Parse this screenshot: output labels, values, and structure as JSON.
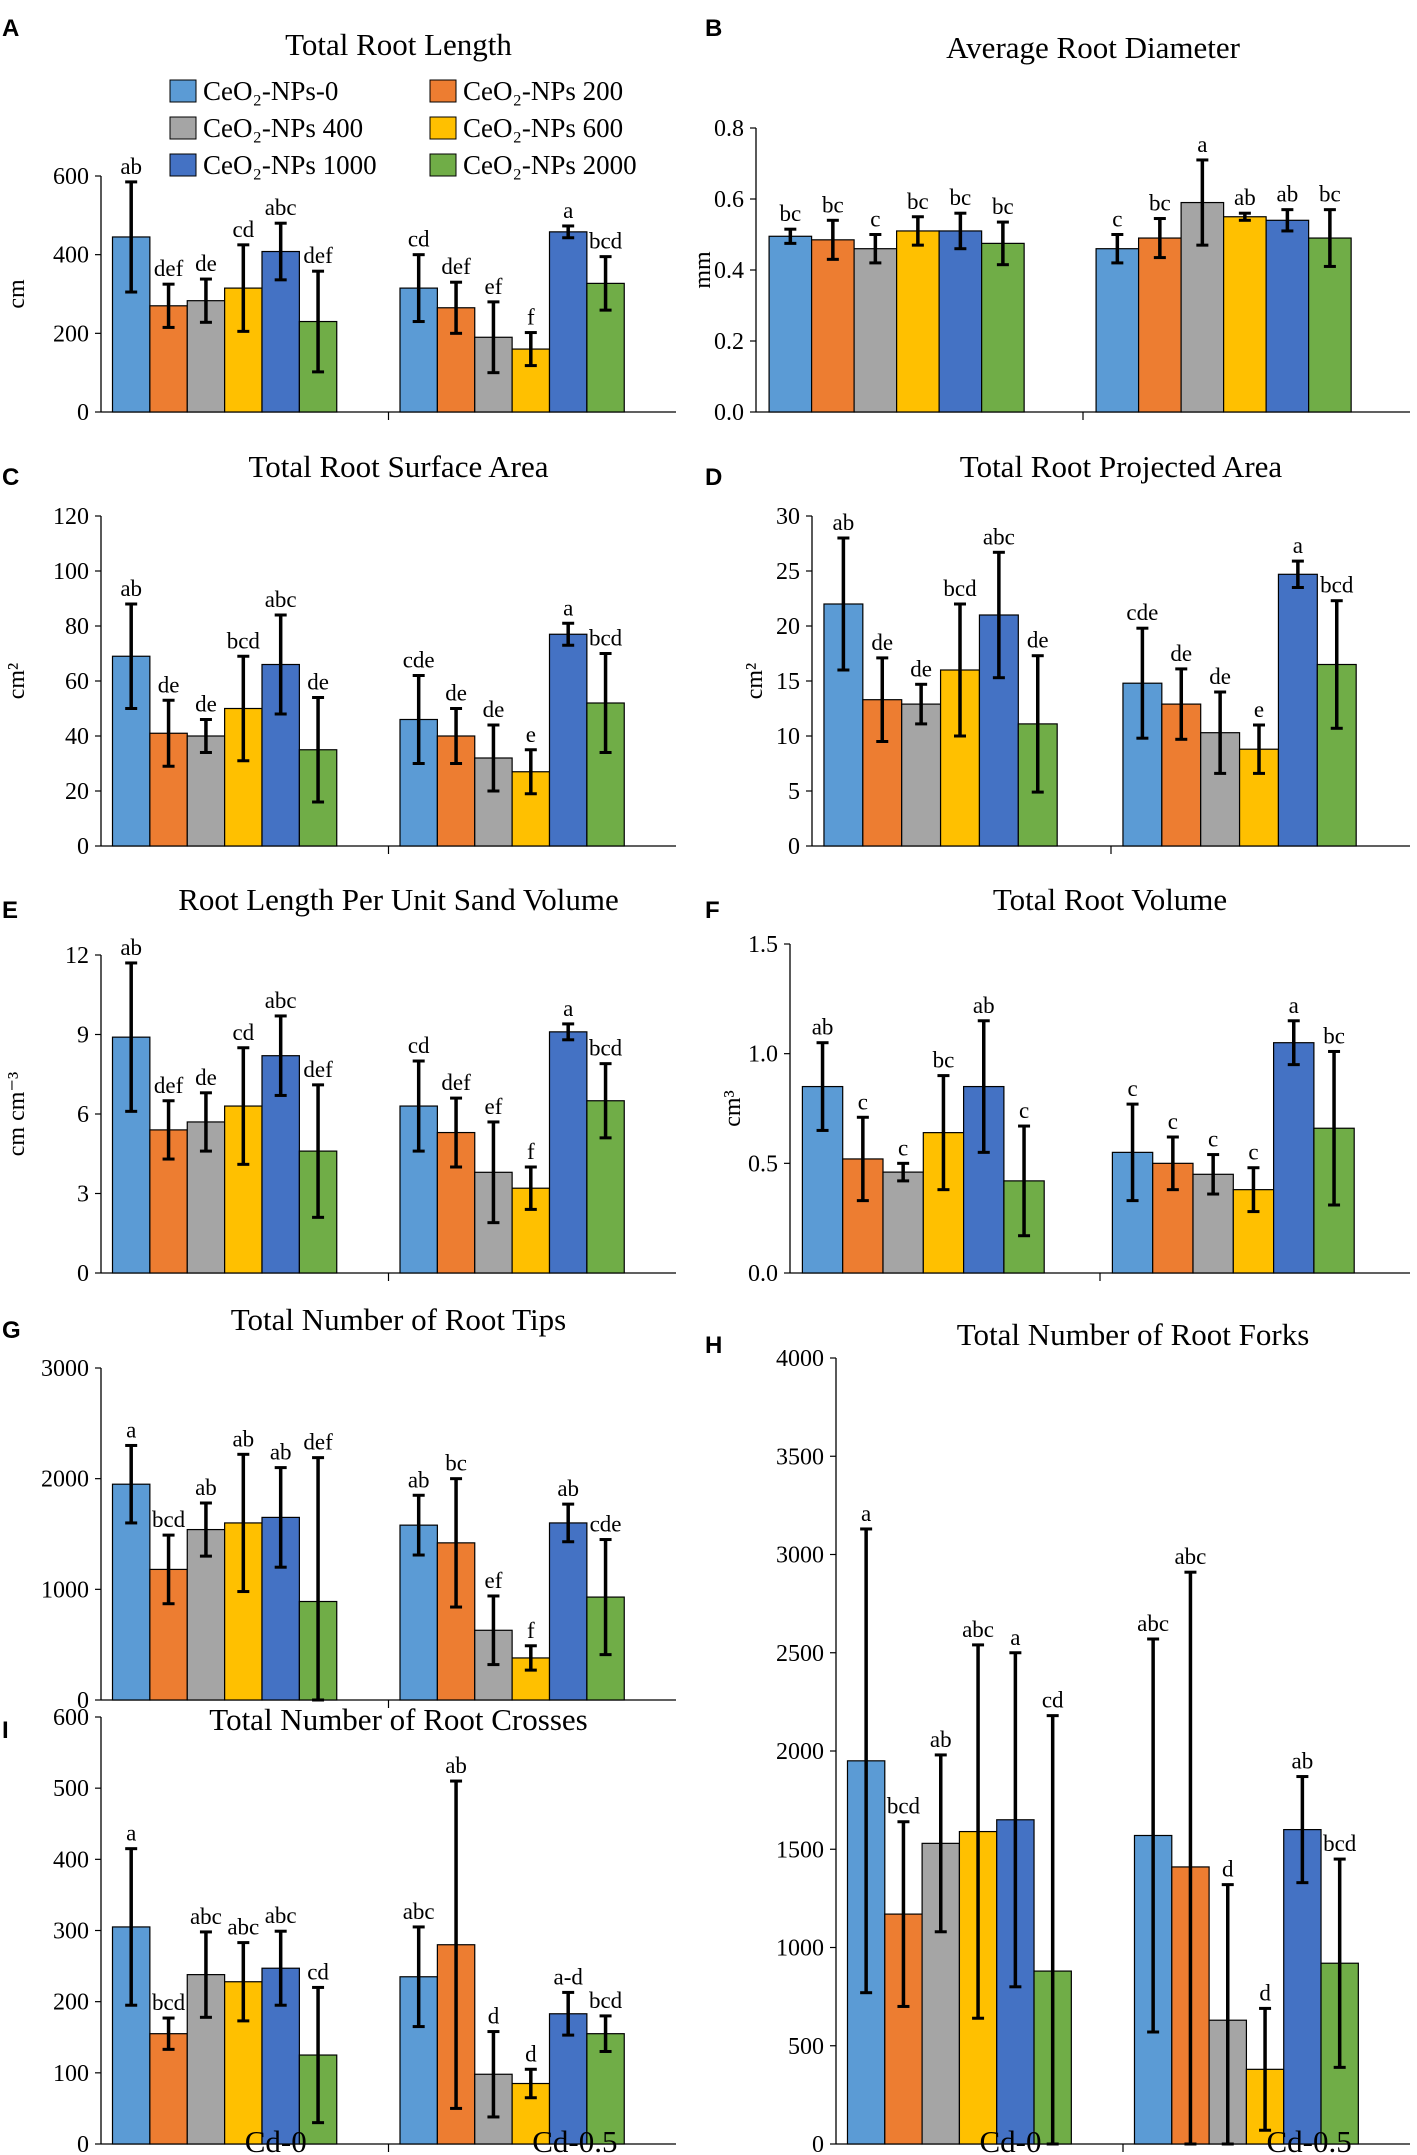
{
  "legend": {
    "items": [
      {
        "label": "CeO₂-NPs-0",
        "color": "#5b9bd5"
      },
      {
        "label": "CeO₂-NPs 200",
        "color": "#ed7d31"
      },
      {
        "label": "CeO₂-NPs 400",
        "color": "#a5a5a5"
      },
      {
        "label": "CeO₂-NPs 600",
        "color": "#ffc000"
      },
      {
        "label": "CeO₂-NPs 1000",
        "color": "#4472c4"
      },
      {
        "label": "CeO₂-NPs 2000",
        "color": "#70ad47"
      }
    ]
  },
  "x_groups": [
    "Cd-0",
    "Cd-0.5"
  ],
  "chart_data": [
    {
      "panel": "A",
      "type": "bar",
      "title": "Total Root Length",
      "ylabel": "cm",
      "ylim": [
        0,
        600
      ],
      "yticks": [
        0,
        200,
        400,
        600
      ],
      "categories": [
        "Cd-0",
        "Cd-0.5"
      ],
      "series": [
        {
          "name": "CeO₂-NPs-0",
          "values": [
            445,
            315
          ],
          "errors": [
            140,
            85
          ],
          "letters": [
            "ab",
            "cd"
          ]
        },
        {
          "name": "CeO₂-NPs 200",
          "values": [
            270,
            265
          ],
          "errors": [
            55,
            65
          ],
          "letters": [
            "def",
            "def"
          ]
        },
        {
          "name": "CeO₂-NPs 400",
          "values": [
            283,
            190
          ],
          "errors": [
            55,
            90
          ],
          "letters": [
            "de",
            "ef"
          ]
        },
        {
          "name": "CeO₂-NPs 600",
          "values": [
            315,
            160
          ],
          "errors": [
            110,
            42
          ],
          "letters": [
            "cd",
            "f"
          ]
        },
        {
          "name": "CeO₂-NPs 1000",
          "values": [
            408,
            458
          ],
          "errors": [
            72,
            15
          ],
          "letters": [
            "abc",
            "a"
          ]
        },
        {
          "name": "CeO₂-NPs 2000",
          "values": [
            230,
            327
          ],
          "errors": [
            128,
            68
          ],
          "letters": [
            "def",
            "bcd"
          ]
        }
      ]
    },
    {
      "panel": "B",
      "type": "bar",
      "title": "Average Root Diameter",
      "ylabel": "mm",
      "ylim": [
        0,
        0.8
      ],
      "yticks": [
        0.0,
        0.2,
        0.4,
        0.6,
        0.8
      ],
      "tick_decimals": 1,
      "categories": [
        "Cd-0",
        "Cd-0.5"
      ],
      "series": [
        {
          "name": "CeO₂-NPs-0",
          "values": [
            0.495,
            0.46
          ],
          "errors": [
            0.02,
            0.04
          ],
          "letters": [
            "bc",
            "c"
          ]
        },
        {
          "name": "CeO₂-NPs 200",
          "values": [
            0.485,
            0.49
          ],
          "errors": [
            0.055,
            0.055
          ],
          "letters": [
            "bc",
            "bc"
          ]
        },
        {
          "name": "CeO₂-NPs 400",
          "values": [
            0.46,
            0.59
          ],
          "errors": [
            0.04,
            0.12
          ],
          "letters": [
            "c",
            "a"
          ]
        },
        {
          "name": "CeO₂-NPs 600",
          "values": [
            0.51,
            0.55
          ],
          "errors": [
            0.04,
            0.01
          ],
          "letters": [
            "bc",
            "ab"
          ]
        },
        {
          "name": "CeO₂-NPs 1000",
          "values": [
            0.51,
            0.54
          ],
          "errors": [
            0.05,
            0.03
          ],
          "letters": [
            "bc",
            "ab"
          ]
        },
        {
          "name": "CeO₂-NPs 2000",
          "values": [
            0.475,
            0.49
          ],
          "errors": [
            0.06,
            0.08
          ],
          "letters": [
            "bc",
            "bc"
          ]
        }
      ]
    },
    {
      "panel": "C",
      "type": "bar",
      "title": "Total Root Surface Area",
      "ylabel": "cm²",
      "ylim": [
        0,
        120
      ],
      "yticks": [
        0,
        20,
        40,
        60,
        80,
        100,
        120
      ],
      "categories": [
        "Cd-0",
        "Cd-0.5"
      ],
      "series": [
        {
          "name": "CeO₂-NPs-0",
          "values": [
            69,
            46
          ],
          "errors": [
            19,
            16
          ],
          "letters": [
            "ab",
            "cde"
          ]
        },
        {
          "name": "CeO₂-NPs 200",
          "values": [
            41,
            40
          ],
          "errors": [
            12,
            10
          ],
          "letters": [
            "de",
            "de"
          ]
        },
        {
          "name": "CeO₂-NPs 400",
          "values": [
            40,
            32
          ],
          "errors": [
            6,
            12
          ],
          "letters": [
            "de",
            "de"
          ]
        },
        {
          "name": "CeO₂-NPs 600",
          "values": [
            50,
            27
          ],
          "errors": [
            19,
            8
          ],
          "letters": [
            "bcd",
            "e"
          ]
        },
        {
          "name": "CeO₂-NPs 1000",
          "values": [
            66,
            77
          ],
          "errors": [
            18,
            4
          ],
          "letters": [
            "abc",
            "a"
          ]
        },
        {
          "name": "CeO₂-NPs 2000",
          "values": [
            35,
            52
          ],
          "errors": [
            19,
            18
          ],
          "letters": [
            "de",
            "bcd"
          ]
        }
      ]
    },
    {
      "panel": "D",
      "type": "bar",
      "title": "Total Root Projected Area",
      "ylabel": "cm²",
      "ylim": [
        0,
        30
      ],
      "yticks": [
        0,
        5,
        10,
        15,
        20,
        25,
        30
      ],
      "categories": [
        "Cd-0",
        "Cd-0.5"
      ],
      "series": [
        {
          "name": "CeO₂-NPs-0",
          "values": [
            22,
            14.8
          ],
          "errors": [
            6,
            5
          ],
          "letters": [
            "ab",
            "cde"
          ]
        },
        {
          "name": "CeO₂-NPs 200",
          "values": [
            13.3,
            12.9
          ],
          "errors": [
            3.8,
            3.2
          ],
          "letters": [
            "de",
            "de"
          ]
        },
        {
          "name": "CeO₂-NPs 400",
          "values": [
            12.9,
            10.3
          ],
          "errors": [
            1.8,
            3.7
          ],
          "letters": [
            "de",
            "de"
          ]
        },
        {
          "name": "CeO₂-NPs 600",
          "values": [
            16,
            8.8
          ],
          "errors": [
            6,
            2.2
          ],
          "letters": [
            "bcd",
            "e"
          ]
        },
        {
          "name": "CeO₂-NPs 1000",
          "values": [
            21,
            24.7
          ],
          "errors": [
            5.7,
            1.2
          ],
          "letters": [
            "abc",
            "a"
          ]
        },
        {
          "name": "CeO₂-NPs 2000",
          "values": [
            11.1,
            16.5
          ],
          "errors": [
            6.2,
            5.8
          ],
          "letters": [
            "de",
            "bcd"
          ]
        }
      ]
    },
    {
      "panel": "E",
      "type": "bar",
      "title": "Root Length Per Unit Sand Volume",
      "ylabel": "cm cm⁻³",
      "ylim": [
        0,
        12
      ],
      "yticks": [
        0,
        3,
        6,
        9,
        12
      ],
      "categories": [
        "Cd-0",
        "Cd-0.5"
      ],
      "series": [
        {
          "name": "CeO₂-NPs-0",
          "values": [
            8.9,
            6.3
          ],
          "errors": [
            2.8,
            1.7
          ],
          "letters": [
            "ab",
            "cd"
          ]
        },
        {
          "name": "CeO₂-NPs 200",
          "values": [
            5.4,
            5.3
          ],
          "errors": [
            1.1,
            1.3
          ],
          "letters": [
            "def",
            "def"
          ]
        },
        {
          "name": "CeO₂-NPs 400",
          "values": [
            5.7,
            3.8
          ],
          "errors": [
            1.1,
            1.9
          ],
          "letters": [
            "de",
            "ef"
          ]
        },
        {
          "name": "CeO₂-NPs 600",
          "values": [
            6.3,
            3.2
          ],
          "errors": [
            2.2,
            0.8
          ],
          "letters": [
            "cd",
            "f"
          ]
        },
        {
          "name": "CeO₂-NPs 1000",
          "values": [
            8.2,
            9.1
          ],
          "errors": [
            1.5,
            0.3
          ],
          "letters": [
            "abc",
            "a"
          ]
        },
        {
          "name": "CeO₂-NPs 2000",
          "values": [
            4.6,
            6.5
          ],
          "errors": [
            2.5,
            1.4
          ],
          "letters": [
            "def",
            "bcd"
          ]
        }
      ]
    },
    {
      "panel": "F",
      "type": "bar",
      "title": "Total Root Volume",
      "ylabel": "cm³",
      "ylim": [
        0,
        1.5
      ],
      "yticks": [
        0.0,
        0.5,
        1.0,
        1.5
      ],
      "tick_decimals": 1,
      "categories": [
        "Cd-0",
        "Cd-0.5"
      ],
      "series": [
        {
          "name": "CeO₂-NPs-0",
          "values": [
            0.85,
            0.55
          ],
          "errors": [
            0.2,
            0.22
          ],
          "letters": [
            "ab",
            "c"
          ]
        },
        {
          "name": "CeO₂-NPs 200",
          "values": [
            0.52,
            0.5
          ],
          "errors": [
            0.19,
            0.12
          ],
          "letters": [
            "c",
            "c"
          ]
        },
        {
          "name": "CeO₂-NPs 400",
          "values": [
            0.46,
            0.45
          ],
          "errors": [
            0.04,
            0.09
          ],
          "letters": [
            "c",
            "c"
          ]
        },
        {
          "name": "CeO₂-NPs 600",
          "values": [
            0.64,
            0.38
          ],
          "errors": [
            0.26,
            0.1
          ],
          "letters": [
            "bc",
            "c"
          ]
        },
        {
          "name": "CeO₂-NPs 1000",
          "values": [
            0.85,
            1.05
          ],
          "errors": [
            0.3,
            0.1
          ],
          "letters": [
            "ab",
            "a"
          ]
        },
        {
          "name": "CeO₂-NPs 2000",
          "values": [
            0.42,
            0.66
          ],
          "errors": [
            0.25,
            0.35
          ],
          "letters": [
            "c",
            "bc"
          ]
        }
      ]
    },
    {
      "panel": "G",
      "type": "bar",
      "title": "Total Number of Root Tips",
      "ylabel": "",
      "ylim": [
        0,
        3000
      ],
      "yticks": [
        0,
        1000,
        2000,
        3000
      ],
      "categories": [
        "Cd-0",
        "Cd-0.5"
      ],
      "series": [
        {
          "name": "CeO₂-NPs-0",
          "values": [
            1950,
            1580
          ],
          "errors": [
            350,
            270
          ],
          "letters": [
            "a",
            "ab"
          ]
        },
        {
          "name": "CeO₂-NPs 200",
          "values": [
            1180,
            1420
          ],
          "errors": [
            310,
            580
          ],
          "letters": [
            "bcd",
            "bc"
          ]
        },
        {
          "name": "CeO₂-NPs 400",
          "values": [
            1540,
            630
          ],
          "errors": [
            240,
            310
          ],
          "letters": [
            "ab",
            "ef"
          ]
        },
        {
          "name": "CeO₂-NPs 600",
          "values": [
            1600,
            380
          ],
          "errors": [
            620,
            110
          ],
          "letters": [
            "ab",
            "f"
          ]
        },
        {
          "name": "CeO₂-NPs 1000",
          "values": [
            1650,
            1600
          ],
          "errors": [
            450,
            170
          ],
          "letters": [
            "ab",
            "ab"
          ]
        },
        {
          "name": "CeO₂-NPs 2000",
          "values": [
            890,
            930
          ],
          "errors": [
            1300,
            520
          ],
          "letters": [
            "def",
            "cde"
          ]
        }
      ]
    },
    {
      "panel": "H",
      "type": "bar",
      "title": "Total Number of Root Forks",
      "ylabel": "",
      "ylim": [
        0,
        4000
      ],
      "yticks": [
        0,
        500,
        1000,
        1500,
        2000,
        2500,
        3000,
        3500,
        4000
      ],
      "categories": [
        "Cd-0",
        "Cd-0.5"
      ],
      "series": [
        {
          "name": "CeO₂-NPs-0",
          "values": [
            1950,
            1570
          ],
          "errors": [
            1180,
            1000
          ],
          "letters": [
            "a",
            "abc"
          ]
        },
        {
          "name": "CeO₂-NPs 200",
          "values": [
            1170,
            1410
          ],
          "errors": [
            470,
            1500
          ],
          "letters": [
            "bcd",
            "abc"
          ]
        },
        {
          "name": "CeO₂-NPs 400",
          "values": [
            1530,
            630
          ],
          "errors": [
            450,
            690
          ],
          "letters": [
            "ab",
            "d"
          ]
        },
        {
          "name": "CeO₂-NPs 600",
          "values": [
            1590,
            380
          ],
          "errors": [
            950,
            310
          ],
          "letters": [
            "abc",
            "d"
          ]
        },
        {
          "name": "CeO₂-NPs 1000",
          "values": [
            1650,
            1600
          ],
          "errors": [
            850,
            270
          ],
          "letters": [
            "a",
            "ab"
          ]
        },
        {
          "name": "CeO₂-NPs 2000",
          "values": [
            880,
            920
          ],
          "errors": [
            1300,
            530
          ],
          "letters": [
            "cd",
            "bcd"
          ]
        }
      ]
    },
    {
      "panel": "I",
      "type": "bar",
      "title": "Total Number of Root Crosses",
      "ylabel": "",
      "ylim": [
        0,
        600
      ],
      "yticks": [
        0,
        100,
        200,
        300,
        400,
        500,
        600
      ],
      "categories": [
        "Cd-0",
        "Cd-0.5"
      ],
      "series": [
        {
          "name": "CeO₂-NPs-0",
          "values": [
            305,
            235
          ],
          "errors": [
            110,
            70
          ],
          "letters": [
            "a",
            "abc"
          ]
        },
        {
          "name": "CeO₂-NPs 200",
          "values": [
            155,
            280
          ],
          "errors": [
            22,
            230
          ],
          "letters": [
            "bcd",
            "ab"
          ]
        },
        {
          "name": "CeO₂-NPs 400",
          "values": [
            238,
            98
          ],
          "errors": [
            60,
            60
          ],
          "letters": [
            "abc",
            "d"
          ]
        },
        {
          "name": "CeO₂-NPs 600",
          "values": [
            228,
            85
          ],
          "errors": [
            55,
            20
          ],
          "letters": [
            "abc",
            "d"
          ]
        },
        {
          "name": "CeO₂-NPs 1000",
          "values": [
            247,
            183
          ],
          "errors": [
            52,
            30
          ],
          "letters": [
            "abc",
            "a-d"
          ]
        },
        {
          "name": "CeO₂-NPs 2000",
          "values": [
            125,
            155
          ],
          "errors": [
            95,
            25
          ],
          "letters": [
            "cd",
            "bcd"
          ]
        }
      ]
    }
  ]
}
